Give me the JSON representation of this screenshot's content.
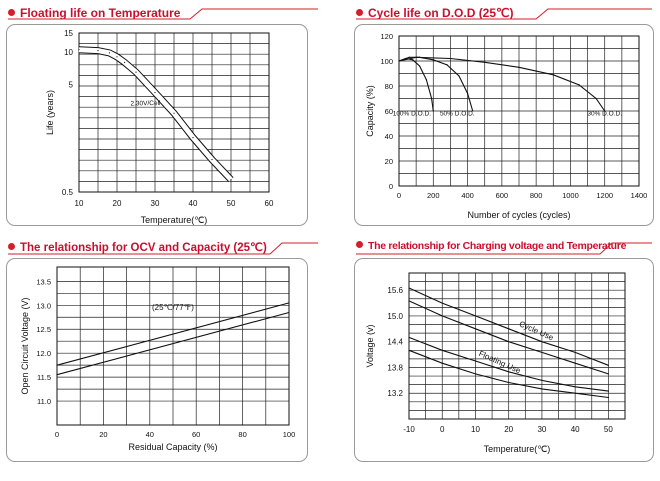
{
  "chart_data": [
    {
      "type": "line",
      "title": "Floating life on Temperature",
      "xlabel": "Temperature(℃)",
      "ylabel": "Life (years)",
      "x_ticks": [
        "10",
        "20",
        "30",
        "40",
        "50",
        "60"
      ],
      "y_ticks": [
        "15",
        "10",
        "5",
        "0.5"
      ],
      "y_scale": "log",
      "xlim": [
        10,
        60
      ],
      "ylim": [
        0.5,
        15
      ],
      "annotations": [
        "2.30V/Cell"
      ],
      "grid": true,
      "series": [
        {
          "x": [
            10,
            15,
            18,
            20,
            22,
            25,
            30,
            35,
            40,
            45,
            50
          ],
          "y": [
            10.5,
            10.3,
            9.8,
            9.0,
            8.0,
            6.5,
            4.2,
            2.7,
            1.6,
            1.0,
            0.65
          ]
        }
      ]
    },
    {
      "type": "line",
      "title": "Cycle life on D.O.D (25℃)",
      "xlabel": "Number of cycles (cycles)",
      "ylabel": "Capacity (%)",
      "x_ticks": [
        "0",
        "200",
        "400",
        "600",
        "800",
        "1000",
        "1200",
        "1400"
      ],
      "y_ticks": [
        "0",
        "20",
        "40",
        "60",
        "80",
        "100",
        "120"
      ],
      "xlim": [
        0,
        1400
      ],
      "ylim": [
        0,
        120
      ],
      "grid": true,
      "series": [
        {
          "name": "100% D.O.D.",
          "x": [
            0,
            40,
            80,
            120,
            160,
            190,
            200
          ],
          "y": [
            100,
            102,
            101,
            96,
            85,
            70,
            60
          ]
        },
        {
          "name": "50% D.O.D.",
          "x": [
            0,
            60,
            120,
            200,
            280,
            350,
            400,
            430
          ],
          "y": [
            100,
            103,
            103,
            101,
            97,
            88,
            74,
            60
          ]
        },
        {
          "name": "30% D.O.D.",
          "x": [
            0,
            100,
            300,
            500,
            700,
            900,
            1050,
            1150,
            1200
          ],
          "y": [
            100,
            103,
            102,
            99,
            95,
            89,
            81,
            70,
            60
          ]
        }
      ]
    },
    {
      "type": "line",
      "title": "The relationship  for OCV and Capacity (25℃)",
      "xlabel": "Residual Capacity (%)",
      "ylabel": "Open Circuit Voltage (V)",
      "x_ticks": [
        "0",
        "20",
        "40",
        "60",
        "80",
        "100"
      ],
      "y_ticks": [
        "11.0",
        "11.5",
        "12.0",
        "12.5",
        "13.0",
        "13.5"
      ],
      "xlim": [
        0,
        100
      ],
      "ylim": [
        10.5,
        13.8
      ],
      "annotations": [
        "(25℃/77℉)"
      ],
      "grid": true,
      "series": [
        {
          "x": [
            0,
            100
          ],
          "y": [
            11.55,
            12.85
          ]
        },
        {
          "x": [
            0,
            100
          ],
          "y": [
            11.75,
            13.05
          ]
        }
      ]
    },
    {
      "type": "line",
      "title": "The relationship for Charging voltage and Temperature",
      "xlabel": "Temperature(℃)",
      "ylabel": "Voltage (v)",
      "x_ticks": [
        "-10",
        "0",
        "10",
        "20",
        "30",
        "40",
        "50"
      ],
      "y_ticks": [
        "15.6",
        "15.0",
        "14.4",
        "13.8",
        "13.2"
      ],
      "xlim": [
        -10,
        55
      ],
      "ylim": [
        12.6,
        16.0
      ],
      "grid": true,
      "series": [
        {
          "name": "Cycle Use",
          "x": [
            -10,
            0,
            10,
            20,
            30,
            40,
            50
          ],
          "y": [
            15.65,
            15.3,
            15.0,
            14.7,
            14.4,
            14.15,
            13.85
          ]
        },
        {
          "name": "Cycle Use",
          "x": [
            -10,
            0,
            10,
            20,
            30,
            40,
            50
          ],
          "y": [
            15.35,
            15.0,
            14.7,
            14.4,
            14.15,
            13.9,
            13.65
          ]
        },
        {
          "name": "Floating Use",
          "x": [
            -10,
            0,
            10,
            20,
            30,
            40,
            50
          ],
          "y": [
            14.5,
            14.2,
            13.95,
            13.7,
            13.5,
            13.35,
            13.25
          ]
        },
        {
          "name": "Floating Use",
          "x": [
            -10,
            0,
            10,
            20,
            30,
            40,
            50
          ],
          "y": [
            14.2,
            13.9,
            13.65,
            13.45,
            13.3,
            13.2,
            13.1
          ]
        }
      ]
    }
  ]
}
